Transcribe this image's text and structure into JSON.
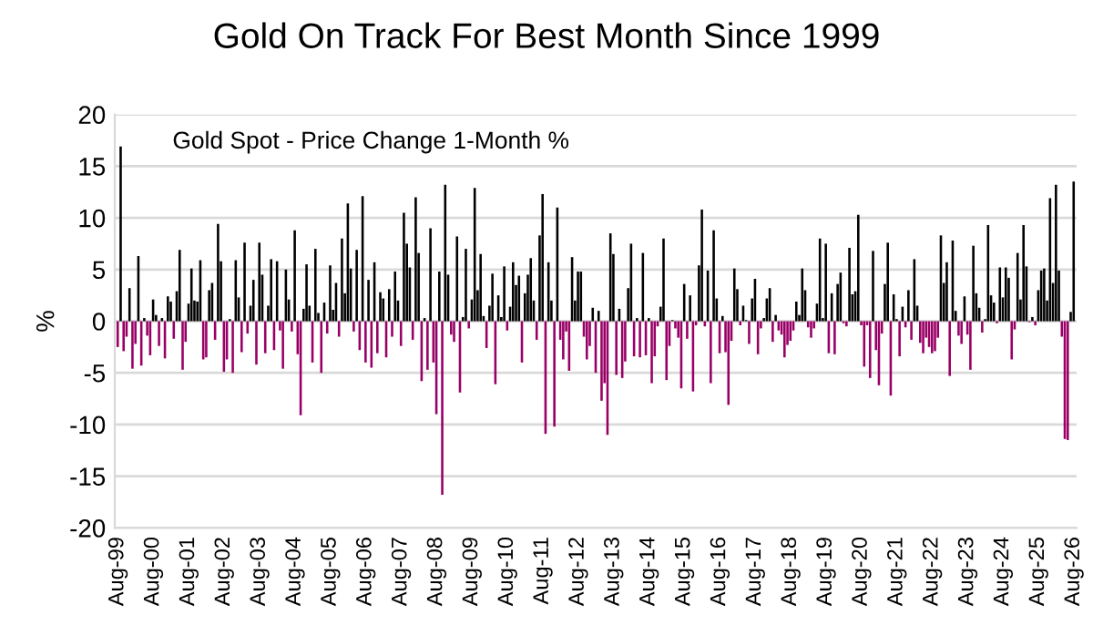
{
  "chart_data": {
    "type": "bar",
    "title": "Gold On Track For Best Month Since 1999",
    "ylabel": "%",
    "annotations": [
      "Gold Spot - Price Change 1-Month %"
    ],
    "categories": [
      "Aug-99",
      null,
      null,
      null,
      null,
      null,
      null,
      null,
      null,
      null,
      null,
      null,
      "Aug-00",
      null,
      null,
      null,
      null,
      null,
      null,
      null,
      null,
      null,
      null,
      null,
      "Aug-01",
      null,
      null,
      null,
      null,
      null,
      null,
      null,
      null,
      null,
      null,
      null,
      "Aug-02",
      null,
      null,
      null,
      null,
      null,
      null,
      null,
      null,
      null,
      null,
      null,
      "Aug-03",
      null,
      null,
      null,
      null,
      null,
      null,
      null,
      null,
      null,
      null,
      null,
      "Aug-04",
      null,
      null,
      null,
      null,
      null,
      null,
      null,
      null,
      null,
      null,
      null,
      "Aug-05",
      null,
      null,
      null,
      null,
      null,
      null,
      null,
      null,
      null,
      null,
      null,
      "Aug-06",
      null,
      null,
      null,
      null,
      null,
      null,
      null,
      null,
      null,
      null,
      null,
      "Aug-07",
      null,
      null,
      null,
      null,
      null,
      null,
      null,
      null,
      null,
      null,
      null,
      "Aug-08",
      null,
      null,
      null,
      null,
      null,
      null,
      null,
      null,
      null,
      null,
      null,
      "Aug-09",
      null,
      null,
      null,
      null,
      null,
      null,
      null,
      null,
      null,
      null,
      null,
      "Aug-10",
      null,
      null,
      null,
      null,
      null,
      null,
      null,
      null,
      null,
      null,
      null,
      "Aug-11",
      null,
      null,
      null,
      null,
      null,
      null,
      null,
      null,
      null,
      null,
      null,
      "Aug-12",
      null,
      null,
      null,
      null,
      null,
      null,
      null,
      null,
      null,
      null,
      null,
      "Aug-13",
      null,
      null,
      null,
      null,
      null,
      null,
      null,
      null,
      null,
      null,
      null,
      "Aug-14",
      null,
      null,
      null,
      null,
      null,
      null,
      null,
      null,
      null,
      null,
      null,
      "Aug-15",
      null,
      null,
      null,
      null,
      null,
      null,
      null,
      null,
      null,
      null,
      null,
      "Aug-16",
      null,
      null,
      null,
      null,
      null,
      null,
      null,
      null,
      null,
      null,
      null,
      "Aug-17",
      null,
      null,
      null,
      null,
      null,
      null,
      null,
      null,
      null,
      null,
      null,
      "Aug-18",
      null,
      null,
      null,
      null,
      null,
      null,
      null,
      null,
      null,
      null,
      null,
      "Aug-19",
      null,
      null,
      null,
      null,
      null,
      null,
      null,
      null,
      null,
      null,
      null,
      "Aug-20",
      null,
      null,
      null,
      null,
      null,
      null,
      null,
      null,
      null,
      null,
      null,
      "Aug-21",
      null,
      null,
      null,
      null,
      null,
      null,
      null,
      null,
      null,
      null,
      null,
      "Aug-22",
      null,
      null,
      null,
      null,
      null,
      null,
      null,
      null,
      null,
      null,
      null,
      "Aug-23",
      null,
      null,
      null,
      null,
      null,
      null,
      null,
      null,
      null,
      null,
      null,
      "Aug-24",
      null,
      null,
      null,
      null,
      null,
      null,
      null,
      null,
      null,
      null,
      null,
      "Aug-25",
      null,
      null,
      null,
      null,
      null,
      null,
      null,
      null,
      null,
      null,
      null,
      "Aug-26"
    ],
    "series": [
      {
        "color": "#000000",
        "values": [
          null,
          16.9,
          null,
          null,
          3.2,
          null,
          null,
          6.3,
          null,
          0.3,
          null,
          null,
          2.1,
          0.6,
          null,
          0.3,
          null,
          2.4,
          1.9,
          null,
          2.9,
          6.9,
          null,
          null,
          1.7,
          5.1,
          2.0,
          1.9,
          5.9,
          null,
          null,
          3.0,
          3.7,
          null,
          9.4,
          5.8,
          null,
          null,
          0.2,
          null,
          5.9,
          2.3,
          null,
          7.6,
          null,
          1.5,
          4.0,
          null,
          7.6,
          4.5,
          null,
          1.5,
          6.0,
          null,
          5.8,
          null,
          null,
          5.0,
          2.1,
          null,
          8.8,
          null,
          null,
          1.2,
          5.5,
          1.5,
          null,
          7.0,
          0.8,
          null,
          1.8,
          null,
          5.4,
          1.1,
          3.7,
          null,
          8.0,
          2.7,
          11.4,
          5.1,
          null,
          6.9,
          null,
          12.1,
          null,
          4.0,
          null,
          5.7,
          null,
          2.8,
          2.2,
          null,
          3.1,
          null,
          4.8,
          2.0,
          null,
          10.5,
          7.5,
          5.2,
          null,
          12.0,
          6.6,
          null,
          0.3,
          null,
          9.0,
          null,
          null,
          4.8,
          null,
          13.2,
          4.5,
          null,
          null,
          8.2,
          null,
          0.4,
          7.0,
          null,
          2.1,
          12.9,
          3.0,
          6.5,
          0.5,
          null,
          1.5,
          4.6,
          null,
          2.5,
          0.4,
          5.3,
          null,
          1.4,
          5.7,
          3.5,
          4.4,
          null,
          2.7,
          4.5,
          6.1,
          2.0,
          null,
          8.3,
          12.3,
          null,
          5.7,
          2.0,
          null,
          11.0,
          null,
          null,
          null,
          null,
          6.2,
          2.0,
          4.8,
          4.8,
          null,
          null,
          null,
          1.3,
          null,
          1.0,
          null,
          null,
          null,
          8.5,
          6.5,
          null,
          1.2,
          null,
          null,
          3.2,
          7.5,
          null,
          0.3,
          null,
          6.6,
          null,
          0.3,
          null,
          null,
          null,
          1.4,
          8.0,
          null,
          null,
          0.1,
          null,
          null,
          null,
          3.6,
          null,
          2.5,
          null,
          null,
          5.4,
          10.8,
          null,
          4.9,
          null,
          8.8,
          2.2,
          null,
          0.5,
          null,
          null,
          null,
          5.1,
          3.1,
          null,
          1.5,
          0.1,
          null,
          2.2,
          4.1,
          null,
          null,
          0.3,
          2.2,
          3.2,
          null,
          0.6,
          null,
          null,
          null,
          null,
          null,
          null,
          1.9,
          0.6,
          5.1,
          3.0,
          null,
          null,
          null,
          1.7,
          8.0,
          0.3,
          7.5,
          null,
          2.7,
          null,
          3.6,
          4.7,
          null,
          null,
          7.1,
          2.6,
          2.9,
          10.3,
          null,
          null,
          null,
          null,
          6.8,
          null,
          null,
          null,
          3.6,
          7.6,
          null,
          2.6,
          0.2,
          null,
          1.4,
          null,
          3.0,
          null,
          6.0,
          1.5,
          null,
          null,
          null,
          null,
          null,
          null,
          null,
          8.3,
          3.7,
          5.7,
          null,
          7.8,
          1.0,
          null,
          null,
          2.4,
          null,
          null,
          7.3,
          2.7,
          1.3,
          null,
          0.2,
          9.3,
          2.5,
          1.8,
          null,
          5.2,
          2.3,
          5.2,
          4.2,
          null,
          null,
          6.6,
          2.1,
          9.3,
          5.3,
          null,
          0.4,
          null,
          3.0,
          4.9,
          5.1,
          2.0,
          11.9,
          3.7,
          13.2,
          4.9,
          null,
          null,
          null,
          0.9,
          13.5
        ]
      },
      {
        "color": "#990066",
        "values": [
          -2.5,
          null,
          -2.9,
          -1.5,
          null,
          -4.6,
          -2.2,
          null,
          -4.3,
          null,
          -1.4,
          -3.3,
          null,
          null,
          -2.4,
          null,
          -3.6,
          null,
          null,
          -1.7,
          null,
          null,
          -4.7,
          -2.0,
          null,
          null,
          null,
          null,
          null,
          -3.7,
          -3.5,
          null,
          null,
          -1.8,
          null,
          null,
          -4.9,
          -3.7,
          null,
          -5.0,
          null,
          null,
          -3.0,
          null,
          -1.2,
          null,
          null,
          -4.2,
          null,
          null,
          -3.1,
          null,
          null,
          -2.8,
          null,
          -0.9,
          -4.6,
          null,
          null,
          -1.0,
          null,
          -3.2,
          -9.1,
          null,
          null,
          null,
          -4.0,
          null,
          null,
          -5.0,
          null,
          -1.2,
          null,
          null,
          null,
          -1.5,
          null,
          null,
          null,
          null,
          -1.0,
          null,
          -2.8,
          null,
          -4.0,
          null,
          -4.5,
          null,
          -3.1,
          null,
          null,
          -3.5,
          null,
          -1.5,
          null,
          null,
          -2.4,
          null,
          null,
          null,
          -1.8,
          null,
          null,
          -5.8,
          null,
          -4.7,
          null,
          -4.0,
          -9.0,
          null,
          -16.8,
          null,
          null,
          -1.3,
          -2.0,
          null,
          -6.9,
          null,
          null,
          -0.7,
          null,
          null,
          null,
          null,
          null,
          -2.6,
          null,
          null,
          -6.1,
          null,
          null,
          null,
          -0.9,
          null,
          null,
          null,
          null,
          -4.0,
          null,
          null,
          null,
          null,
          -1.8,
          null,
          null,
          -10.9,
          null,
          null,
          -10.2,
          null,
          -1.8,
          -3.7,
          -1.0,
          -4.8,
          null,
          null,
          null,
          null,
          -1.5,
          -3.7,
          -2.4,
          null,
          -5.0,
          null,
          -7.7,
          -6.0,
          -11.0,
          null,
          null,
          -5.2,
          null,
          -5.5,
          -3.9,
          null,
          null,
          -3.4,
          null,
          -3.5,
          null,
          -3.3,
          null,
          -6.0,
          -3.4,
          -0.5,
          null,
          null,
          -5.7,
          -2.4,
          null,
          -0.7,
          -1.6,
          -6.5,
          null,
          -1.7,
          null,
          -6.8,
          -0.4,
          null,
          null,
          -0.5,
          null,
          -6.0,
          null,
          null,
          -3.1,
          null,
          -3.0,
          -8.1,
          -1.9,
          null,
          null,
          -0.4,
          null,
          null,
          -2.2,
          null,
          null,
          -3.2,
          -0.7,
          null,
          null,
          null,
          -2.0,
          null,
          -0.9,
          -1.3,
          -3.5,
          -2.3,
          -1.9,
          -0.9,
          null,
          null,
          null,
          null,
          -0.6,
          -1.6,
          -0.7,
          null,
          null,
          null,
          null,
          -3.1,
          null,
          -3.2,
          null,
          null,
          -0.2,
          -0.5,
          null,
          null,
          null,
          null,
          -0.4,
          -4.4,
          -0.4,
          -5.5,
          null,
          -2.8,
          -6.2,
          -1.2,
          null,
          null,
          -7.2,
          null,
          null,
          -3.4,
          null,
          -0.6,
          null,
          -1.8,
          null,
          null,
          -2.1,
          -3.1,
          -1.6,
          -2.5,
          -3.1,
          -2.9,
          -1.6,
          null,
          null,
          null,
          -5.3,
          null,
          null,
          -1.4,
          -2.2,
          null,
          -1.3,
          -4.7,
          null,
          null,
          null,
          -1.1,
          null,
          null,
          null,
          null,
          -0.2,
          null,
          null,
          null,
          null,
          -3.7,
          -0.8,
          null,
          null,
          null,
          null,
          -0.1,
          null,
          -0.4,
          null,
          null,
          null,
          null,
          null,
          null,
          null,
          null,
          -1.5,
          -11.4,
          -11.5,
          null,
          null
        ]
      }
    ],
    "ylim": [
      -20,
      20
    ],
    "yticks": [
      -20,
      -15,
      -10,
      -5,
      0,
      5,
      10,
      15,
      20
    ],
    "grid": "y"
  }
}
